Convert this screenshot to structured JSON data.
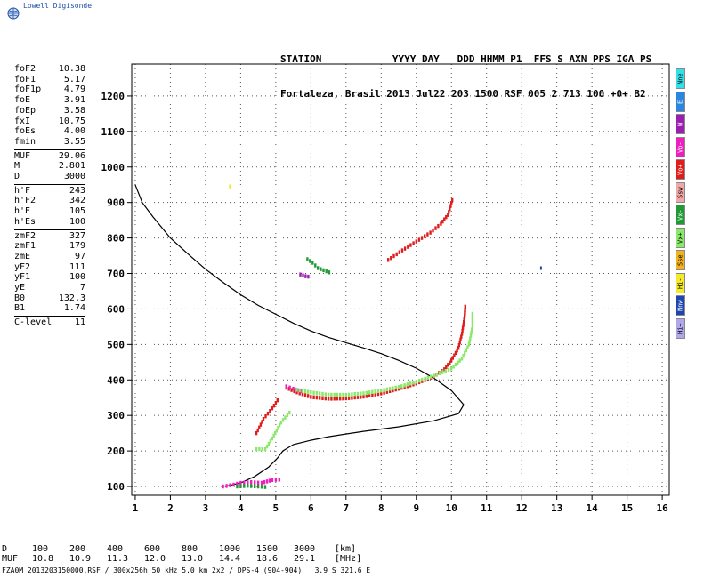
{
  "brand": {
    "name": "Lowell Digisonde"
  },
  "header": {
    "line1": "STATION            YYYY DAY   DDD HHMM P1  FFS S AXN PPS IGA PS",
    "line2": "Fortaleza, Brasil 2013 Jul22 203 1500 RSF 005 2 713 100 +0+ B2"
  },
  "parameters": [
    {
      "label": "foF2",
      "value": "10.38"
    },
    {
      "label": "foF1",
      "value": "5.17"
    },
    {
      "label": "foF1p",
      "value": "4.79"
    },
    {
      "label": "foE",
      "value": "3.91"
    },
    {
      "label": "foEp",
      "value": "3.58"
    },
    {
      "label": "fxI",
      "value": "10.75"
    },
    {
      "label": "foEs",
      "value": "4.00"
    },
    {
      "label": "fmin",
      "value": "3.55"
    },
    {
      "label": "MUF",
      "value": "29.06",
      "sep": true
    },
    {
      "label": "M",
      "value": "2.801"
    },
    {
      "label": "D",
      "value": "3000"
    },
    {
      "label": "h'F",
      "value": "243",
      "sep": true
    },
    {
      "label": "h'F2",
      "value": "342"
    },
    {
      "label": "h'E",
      "value": "105"
    },
    {
      "label": "h'Es",
      "value": "100"
    },
    {
      "label": "zmF2",
      "value": "327",
      "sep": true
    },
    {
      "label": "zmF1",
      "value": "179"
    },
    {
      "label": "zmE",
      "value": "97"
    },
    {
      "label": "yF2",
      "value": "111"
    },
    {
      "label": "yF1",
      "value": "100"
    },
    {
      "label": "yE",
      "value": "7"
    },
    {
      "label": "B0",
      "value": "132.3"
    },
    {
      "label": "B1",
      "value": "1.74"
    },
    {
      "label": "C-level",
      "value": "11",
      "sep": true
    }
  ],
  "legend": [
    {
      "label": "Nne",
      "color": "#33e0e8"
    },
    {
      "label": "E",
      "color": "#2a86e0"
    },
    {
      "label": "W",
      "color": "#9a1fb0"
    },
    {
      "label": "Vo-",
      "color": "#ee1fbf"
    },
    {
      "label": "Vo+",
      "color": "#e01c1c"
    },
    {
      "label": "Ssw",
      "color": "#f0a8a8"
    },
    {
      "label": "Vx-",
      "color": "#1f9a35"
    },
    {
      "label": "Vx+",
      "color": "#8ae86a"
    },
    {
      "label": "Sse",
      "color": "#f2b21a"
    },
    {
      "label": "Hi-",
      "color": "#f2ea2a"
    },
    {
      "label": "Nnw",
      "color": "#1f45b0"
    },
    {
      "label": "Hi+",
      "color": "#b0a8e8"
    }
  ],
  "chart_data": {
    "type": "scatter",
    "xlim": [
      0.9,
      16.2
    ],
    "ylim": [
      75,
      1290
    ],
    "xticks": [
      1,
      2,
      3,
      4,
      5,
      6,
      7,
      8,
      9,
      10,
      11,
      12,
      13,
      14,
      15,
      16
    ],
    "yticks": [
      100,
      200,
      300,
      400,
      500,
      600,
      700,
      800,
      900,
      1000,
      1100,
      1200
    ],
    "grid": true,
    "profile": {
      "color": "#000000",
      "points": [
        [
          1.0,
          950
        ],
        [
          1.2,
          900
        ],
        [
          1.5,
          860
        ],
        [
          2.0,
          800
        ],
        [
          2.5,
          755
        ],
        [
          3.0,
          712
        ],
        [
          3.5,
          675
        ],
        [
          4.0,
          640
        ],
        [
          4.5,
          610
        ],
        [
          5.0,
          585
        ],
        [
          5.5,
          560
        ],
        [
          6.0,
          538
        ],
        [
          6.5,
          520
        ],
        [
          7.0,
          505
        ],
        [
          7.5,
          490
        ],
        [
          8.0,
          474
        ],
        [
          8.5,
          455
        ],
        [
          9.0,
          433
        ],
        [
          9.5,
          405
        ],
        [
          10.0,
          370
        ],
        [
          10.35,
          330
        ],
        [
          10.2,
          305
        ],
        [
          9.5,
          285
        ],
        [
          8.5,
          268
        ],
        [
          7.5,
          255
        ],
        [
          6.5,
          240
        ],
        [
          6.0,
          230
        ],
        [
          5.5,
          218
        ],
        [
          5.2,
          200
        ],
        [
          5.05,
          180
        ],
        [
          4.8,
          155
        ],
        [
          4.4,
          128
        ],
        [
          4.0,
          110
        ],
        [
          3.55,
          100
        ]
      ]
    },
    "traces": [
      {
        "name": "Vo+",
        "color": "#e01c1c",
        "points": [
          [
            5.3,
            378
          ],
          [
            5.6,
            365
          ],
          [
            6.0,
            352
          ],
          [
            6.5,
            347
          ],
          [
            7.0,
            348
          ],
          [
            7.5,
            353
          ],
          [
            8.0,
            362
          ],
          [
            8.5,
            375
          ],
          [
            9.0,
            390
          ],
          [
            9.5,
            410
          ],
          [
            9.8,
            430
          ],
          [
            10.0,
            455
          ],
          [
            10.2,
            490
          ],
          [
            10.3,
            530
          ],
          [
            10.38,
            580
          ],
          [
            10.4,
            615
          ]
        ]
      },
      {
        "name": "Vo-",
        "color": "#ee1fbf",
        "points": [
          [
            5.3,
            382
          ],
          [
            5.5,
            375
          ],
          [
            5.8,
            366
          ]
        ]
      },
      {
        "name": "Vx+",
        "color": "#8ae86a",
        "points": [
          [
            5.6,
            372
          ],
          [
            6.0,
            365
          ],
          [
            6.5,
            358
          ],
          [
            7.0,
            358
          ],
          [
            7.5,
            362
          ],
          [
            8.0,
            370
          ],
          [
            8.5,
            380
          ],
          [
            9.0,
            395
          ],
          [
            9.5,
            412
          ],
          [
            10.0,
            432
          ],
          [
            10.3,
            460
          ],
          [
            10.5,
            500
          ],
          [
            10.6,
            550
          ],
          [
            10.6,
            595
          ]
        ]
      },
      {
        "name": "Vx-",
        "color": "#1f9a35",
        "points": [
          [
            5.9,
            740
          ],
          [
            6.05,
            730
          ],
          [
            6.2,
            715
          ],
          [
            6.6,
            700
          ]
        ]
      },
      {
        "name": "Vo+",
        "color": "#e01c1c",
        "points": [
          [
            8.2,
            738
          ],
          [
            8.6,
            765
          ],
          [
            9.0,
            790
          ],
          [
            9.4,
            815
          ],
          [
            9.7,
            840
          ],
          [
            9.9,
            865
          ],
          [
            10.05,
            915
          ]
        ]
      },
      {
        "name": "Vo+",
        "color": "#e01c1c",
        "points": [
          [
            4.45,
            250
          ],
          [
            4.65,
            290
          ],
          [
            4.9,
            320
          ],
          [
            5.1,
            350
          ]
        ]
      },
      {
        "name": "Vx+",
        "color": "#8ae86a",
        "points": [
          [
            4.45,
            205
          ],
          [
            4.7,
            205
          ],
          [
            4.9,
            235
          ],
          [
            5.15,
            280
          ],
          [
            5.45,
            315
          ]
        ]
      },
      {
        "name": "W",
        "color": "#9a1fb0",
        "points": [
          [
            5.7,
            697
          ],
          [
            5.85,
            692
          ],
          [
            6.0,
            690
          ]
        ]
      },
      {
        "name": "Vo-",
        "color": "#ee1fbf",
        "points": [
          [
            3.5,
            100
          ],
          [
            3.8,
            105
          ],
          [
            4.0,
            110
          ],
          [
            4.3,
            112
          ],
          [
            4.6,
            110
          ],
          [
            4.9,
            118
          ],
          [
            5.2,
            120
          ]
        ]
      },
      {
        "name": "Vx-",
        "color": "#1f9a35",
        "points": [
          [
            3.9,
            100
          ],
          [
            4.2,
            102
          ],
          [
            4.5,
            100
          ],
          [
            4.8,
            98
          ]
        ]
      },
      {
        "name": "Nnw",
        "color": "#1f45b0",
        "points": [
          [
            12.55,
            715
          ]
        ]
      },
      {
        "name": "Hi-",
        "color": "#f2ea2a",
        "points": [
          [
            3.7,
            945
          ],
          [
            3.8,
            940
          ]
        ]
      }
    ]
  },
  "footer": {
    "rows": [
      [
        "D",
        "100",
        "200",
        "400",
        "600",
        "800",
        "1000",
        "1500",
        "3000",
        "[km]"
      ],
      [
        "MUF",
        "10.8",
        "10.9",
        "11.3",
        "12.0",
        "13.0",
        "14.4",
        "18.6",
        "29.1",
        "[MHz]"
      ]
    ],
    "file_line": "FZA0M_2013203150000.RSF / 300x256h 50 kHz 5.0 km 2x2 / DPS-4 (904-904)   3.9 S 321.6 E"
  }
}
